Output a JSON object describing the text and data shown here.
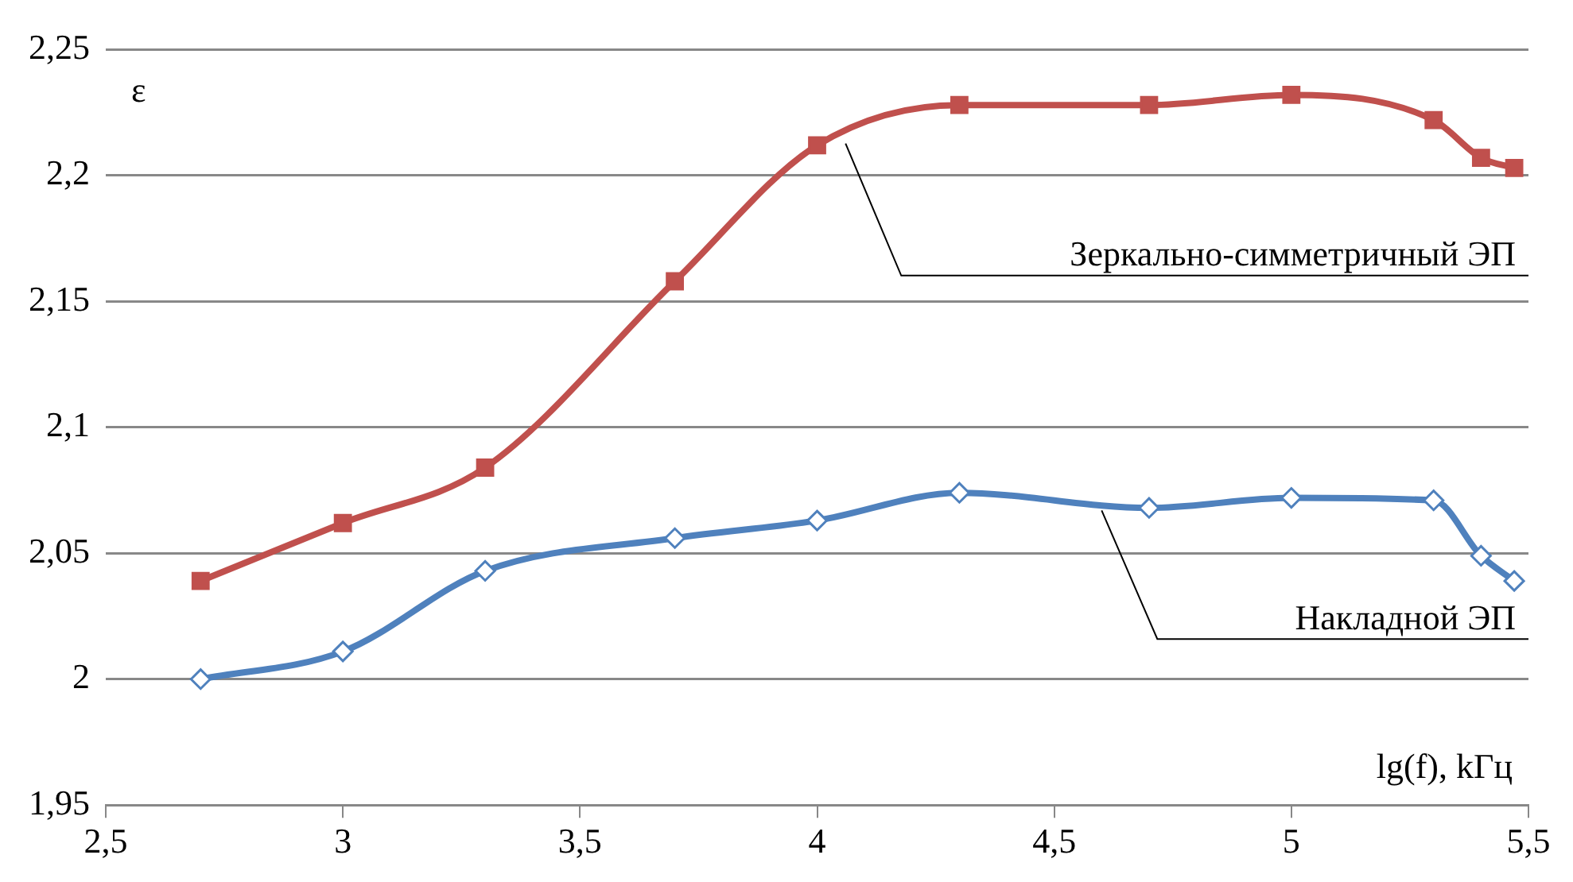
{
  "chart_data": {
    "type": "line",
    "xlabel": "lg(f), kГц",
    "ylabel": "ε",
    "xlim": [
      2.5,
      5.5
    ],
    "xticks": [
      {
        "value": 2.5,
        "label": "2,5"
      },
      3,
      {
        "value": 3.5,
        "label": "3,5"
      },
      4,
      {
        "value": 4.5,
        "label": "4,5"
      },
      5,
      {
        "value": 5.5,
        "label": "5,5"
      }
    ],
    "ylim": [
      1.95,
      2.25
    ],
    "yticks": [
      {
        "value": 1.95,
        "label": "1,95"
      },
      2,
      {
        "value": 2.05,
        "label": "2,05"
      },
      {
        "value": 2.1,
        "label": "2,1"
      },
      {
        "value": 2.15,
        "label": "2,15"
      },
      {
        "value": 2.2,
        "label": "2,2"
      },
      {
        "value": 2.25,
        "label": "2,25"
      }
    ],
    "grid": "y",
    "legend": false,
    "series": [
      {
        "name": "Зеркально-симметричный ЭП",
        "color": "#c0504d",
        "marker": "square",
        "x": [
          2.7,
          3.0,
          3.3,
          3.7,
          4.0,
          4.3,
          4.7,
          5.0,
          5.3,
          5.4,
          5.47
        ],
        "values": [
          2.039,
          2.062,
          2.084,
          2.158,
          2.212,
          2.228,
          2.228,
          2.232,
          2.222,
          2.207,
          2.203
        ]
      },
      {
        "name": "Накладной ЭП",
        "color": "#4f81bd",
        "marker": "diamond",
        "x": [
          2.7,
          3.0,
          3.3,
          3.7,
          4.0,
          4.3,
          4.7,
          5.0,
          5.3,
          5.4,
          5.47
        ],
        "values": [
          2.0,
          2.011,
          2.043,
          2.056,
          2.063,
          2.074,
          2.068,
          2.072,
          2.071,
          2.049,
          2.039
        ]
      }
    ]
  }
}
